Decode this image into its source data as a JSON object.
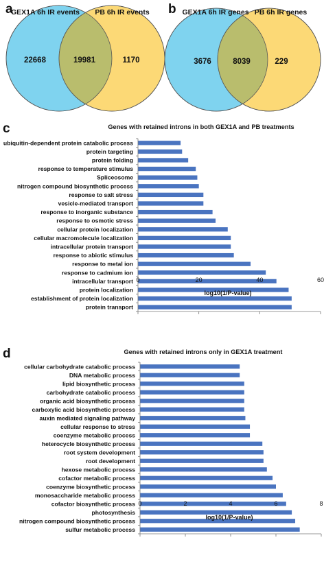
{
  "panels": {
    "a": {
      "letter": "a",
      "left_title": "GEX1A 6h IR events",
      "right_title": "PB 6h IR events",
      "left_only": "22668",
      "overlap": "19981",
      "right_only": "1170"
    },
    "b": {
      "letter": "b",
      "left_title": "GEX1A 6h IR genes",
      "right_title": "PB 6h IR genes",
      "left_only": "3676",
      "overlap": "8039",
      "right_only": "229"
    },
    "c": {
      "letter": "c"
    },
    "d": {
      "letter": "d"
    }
  },
  "colors": {
    "venn_left": "#7fd3ef",
    "venn_right": "#fcd976",
    "venn_overlap": "#b9bd6d",
    "bar": "#4a74c0"
  },
  "chart_data": [
    {
      "id": "c",
      "type": "bar",
      "orientation": "horizontal",
      "title": "Genes with retained introns in both GEX1A and PB treatments",
      "xlabel": "log10(1/P-value)",
      "ylabel": "",
      "xlim": [
        0,
        60
      ],
      "xticks": [
        "0",
        "20",
        "40",
        "60"
      ],
      "categories": [
        "ubiquitin-dependent protein catabolic process",
        "protein targeting",
        "protein folding",
        "response to temperature stimulus",
        "Spliceosome",
        "nitrogen compound biosynthetic process",
        "response to salt stress",
        "vesicle-mediated transport",
        "response to inorganic substance",
        "response to osmotic stress",
        "cellular protein localization",
        "cellular macromolecule localization",
        "intracellular protein transport",
        "response to abiotic stimulus",
        "response to metal ion",
        "response to cadmium ion",
        "intracellular transport",
        "protein localization",
        "establishment of protein localization",
        "protein transport"
      ],
      "values": [
        14,
        14.5,
        16.5,
        19,
        19.5,
        20,
        21.5,
        21.5,
        24.5,
        25.5,
        29.5,
        30.5,
        30.5,
        31.5,
        37,
        42,
        45.5,
        49.5,
        50.5,
        50.5
      ],
      "grid": false
    },
    {
      "id": "d",
      "type": "bar",
      "orientation": "horizontal",
      "title": "Genes with retained introns only in GEX1A treatment",
      "xlabel": "log10(1/P-value)",
      "ylabel": "",
      "xlim": [
        0,
        8
      ],
      "xticks": [
        "0",
        "2",
        "4",
        "6",
        "8"
      ],
      "categories": [
        "cellular carbohydrate catabolic process",
        "DNA metabolic process",
        "lipid biosynthetic process",
        "carbohydrate catabolic process",
        "organic acid biosynthetic process",
        "carboxylic acid biosynthetic process",
        "auxin mediated signaling pathway",
        "cellular response to stress",
        "coenzyme metabolic process",
        "heterocycle biosynthetic process",
        "root system development",
        "root development",
        "hexose metabolic process",
        "cofactor metabolic process",
        "coenzyme biosynthetic process",
        "monosaccharide metabolic process",
        "cofactor biosynthetic process",
        "photosynthesis",
        "nitrogen compound biosynthetic process",
        "sulfur metabolic process"
      ],
      "values": [
        4.4,
        4.4,
        4.6,
        4.6,
        4.6,
        4.6,
        4.65,
        4.85,
        4.85,
        5.4,
        5.45,
        5.45,
        5.6,
        5.85,
        6.0,
        6.3,
        6.45,
        6.7,
        6.85,
        7.05
      ],
      "grid": false
    }
  ]
}
